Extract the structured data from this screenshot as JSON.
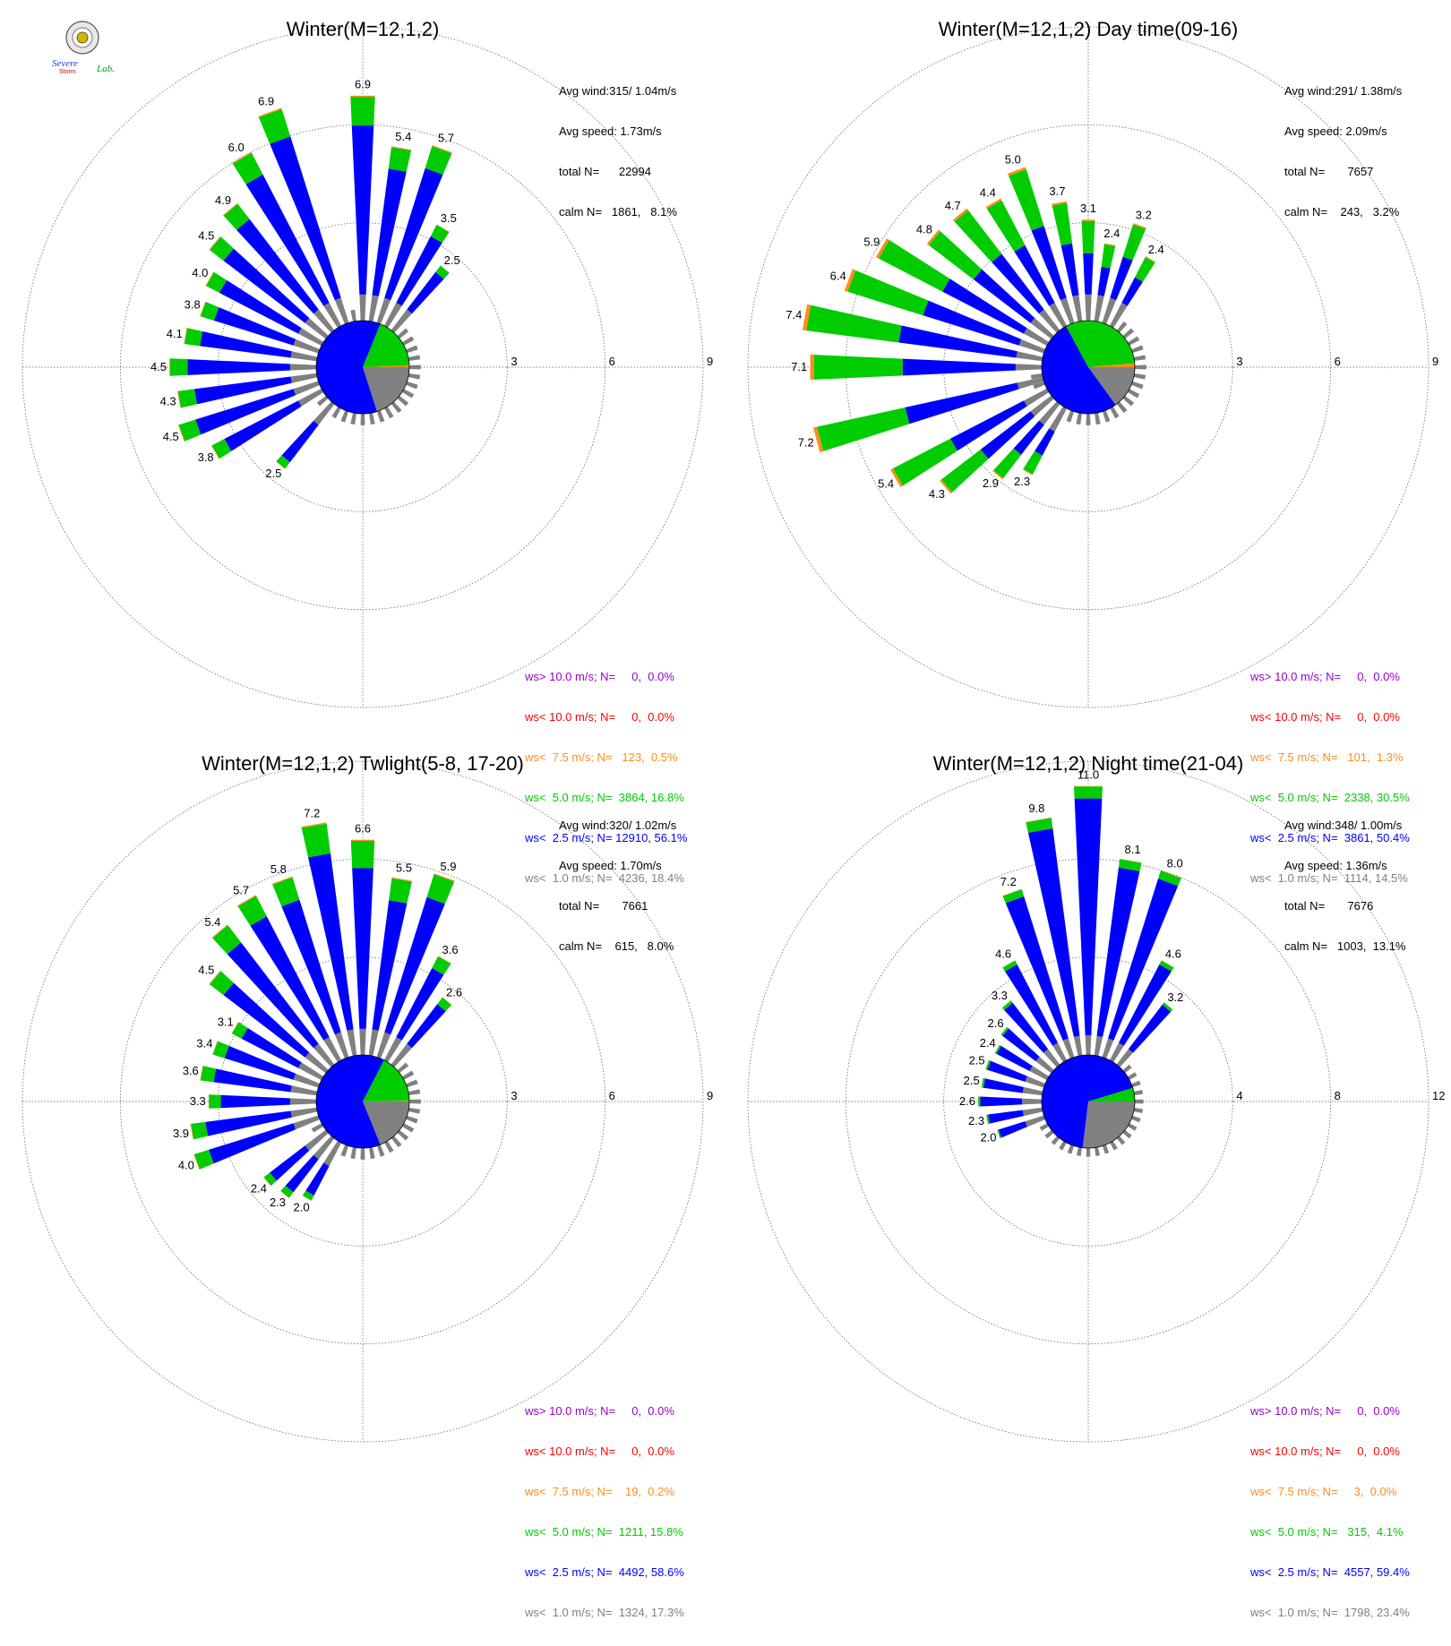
{
  "colors": {
    "gt10": "#9900cc",
    "lt10": "#ff0000",
    "lt7_5": "#ff8c1a",
    "lt5": "#00cc00",
    "lt2_5": "#0000ff",
    "lt1": "#808080"
  },
  "logo": {
    "text_top": "Severe",
    "text_bottom": "Storm",
    "text_lab": "Lab."
  },
  "panels": [
    {
      "title": "Winter(M=12,1,2)",
      "stats": [
        "Avg wind:315/ 1.04m/s",
        "Avg speed: 1.73m/s",
        "total N=      22994",
        "calm N=   1861,   8.1%"
      ],
      "legend": [
        "ws> 10.0 m/s; N=     0,  0.0%",
        "ws< 10.0 m/s; N=     0,  0.0%",
        "ws<  7.5 m/s; N=   123,  0.5%",
        "ws<  5.0 m/s; N=  3864, 16.8%",
        "ws<  2.5 m/s; N= 12910, 56.1%",
        "ws<  1.0 m/s; N=  4236, 18.4%"
      ],
      "rings": [
        "3",
        "6",
        "9"
      ]
    },
    {
      "title": "Winter(M=12,1,2) Day time(09-16)",
      "stats": [
        "Avg wind:291/ 1.38m/s",
        "Avg speed: 2.09m/s",
        "total N=       7657",
        "calm N=    243,   3.2%"
      ],
      "legend": [
        "ws> 10.0 m/s; N=     0,  0.0%",
        "ws< 10.0 m/s; N=     0,  0.0%",
        "ws<  7.5 m/s; N=   101,  1.3%",
        "ws<  5.0 m/s; N=  2338, 30.5%",
        "ws<  2.5 m/s; N=  3861, 50.4%",
        "ws<  1.0 m/s; N=  1114, 14.5%"
      ],
      "rings": [
        "3",
        "6",
        "9"
      ]
    },
    {
      "title": "Winter(M=12,1,2) Twlight(5-8, 17-20)",
      "stats": [
        "Avg wind:320/ 1.02m/s",
        "Avg speed: 1.70m/s",
        "total N=       7661",
        "calm N=    615,   8.0%"
      ],
      "legend": [
        "ws> 10.0 m/s; N=     0,  0.0%",
        "ws< 10.0 m/s; N=     0,  0.0%",
        "ws<  7.5 m/s; N=    19,  0.2%",
        "ws<  5.0 m/s; N=  1211, 15.8%",
        "ws<  2.5 m/s; N=  4492, 58.6%",
        "ws<  1.0 m/s; N=  1324, 17.3%"
      ],
      "rings": [
        "3",
        "6",
        "9"
      ]
    },
    {
      "title": "Winter(M=12,1,2) Night time(21-04)",
      "stats": [
        "Avg wind:348/ 1.00m/s",
        "Avg speed: 1.36m/s",
        "total N=       7676",
        "calm N=   1003,  13.1%"
      ],
      "legend": [
        "ws> 10.0 m/s; N=     0,  0.0%",
        "ws< 10.0 m/s; N=     0,  0.0%",
        "ws<  7.5 m/s; N=     3,  0.0%",
        "ws<  5.0 m/s; N=   315,  4.1%",
        "ws<  2.5 m/s; N=  4557, 59.4%",
        "ws<  1.0 m/s; N=  1798, 23.4%"
      ],
      "rings": [
        "4",
        "8",
        "12"
      ]
    }
  ],
  "chart_data": [
    {
      "type": "polar-bar",
      "title": "Winter(M=12,1,2)",
      "rmax": 9,
      "ring_ticks": [
        3,
        6,
        9
      ],
      "pie_fractions": [
        0.184,
        0.561,
        0.168,
        0.005,
        0.0,
        0.0
      ],
      "directions_deg": [
        0,
        10,
        20,
        30,
        40,
        180,
        190,
        200,
        210,
        220,
        230,
        240,
        250,
        260,
        270,
        280,
        290,
        300,
        310,
        320,
        330,
        340,
        350
      ],
      "bars": [
        {
          "dir": 0,
          "total": 6.9,
          "label": "6.9"
        },
        {
          "dir": 10,
          "total": 5.4,
          "label": "5.4"
        },
        {
          "dir": 20,
          "total": 5.7,
          "label": "5.7"
        },
        {
          "dir": 30,
          "total": 3.5,
          "label": "3.5"
        },
        {
          "dir": 40,
          "total": 2.5,
          "label": "2.5"
        },
        {
          "dir": 220,
          "total": 2.5,
          "label": "2.5"
        },
        {
          "dir": 240,
          "total": 3.8,
          "label": "3.8"
        },
        {
          "dir": 250,
          "total": 4.5,
          "label": "4.5"
        },
        {
          "dir": 260,
          "total": 4.3,
          "label": "4.3"
        },
        {
          "dir": 270,
          "total": 4.5,
          "label": "4.5"
        },
        {
          "dir": 280,
          "total": 4.1,
          "label": "4.1"
        },
        {
          "dir": 290,
          "total": 3.8,
          "label": "3.8"
        },
        {
          "dir": 300,
          "total": 4.0,
          "label": "4.0"
        },
        {
          "dir": 310,
          "total": 4.5,
          "label": "4.5"
        },
        {
          "dir": 320,
          "total": 4.9,
          "label": "4.9"
        },
        {
          "dir": 330,
          "total": 6.0,
          "label": "6.0"
        },
        {
          "dir": 340,
          "total": 6.9,
          "label": "6.9"
        }
      ]
    },
    {
      "type": "polar-bar",
      "title": "Winter(M=12,1,2) Day time(09-16)",
      "rmax": 9,
      "ring_ticks": [
        3,
        6,
        9
      ],
      "pie_fractions": [
        0.145,
        0.504,
        0.305,
        0.013,
        0.0,
        0.0
      ],
      "bars": [
        {
          "dir": 0,
          "total": 3.1,
          "label": "3.1"
        },
        {
          "dir": 10,
          "total": 2.4,
          "label": "2.4"
        },
        {
          "dir": 20,
          "total": 3.2,
          "label": "3.2"
        },
        {
          "dir": 30,
          "total": 2.4,
          "label": "2.4"
        },
        {
          "dir": 210,
          "total": 2.3,
          "label": "2.3"
        },
        {
          "dir": 220,
          "total": 2.9,
          "label": "2.9"
        },
        {
          "dir": 230,
          "total": 4.3,
          "label": "4.3"
        },
        {
          "dir": 240,
          "total": 5.4,
          "label": "5.4"
        },
        {
          "dir": 255,
          "total": 7.2,
          "label": "7.2"
        },
        {
          "dir": 270,
          "total": 7.1,
          "label": "7.1"
        },
        {
          "dir": 280,
          "total": 7.4,
          "label": "7.4"
        },
        {
          "dir": 290,
          "total": 6.4,
          "label": "6.4"
        },
        {
          "dir": 300,
          "total": 5.9,
          "label": "5.9"
        },
        {
          "dir": 310,
          "total": 4.8,
          "label": "4.8"
        },
        {
          "dir": 320,
          "total": 4.7,
          "label": "4.7"
        },
        {
          "dir": 330,
          "total": 4.4,
          "label": "4.4"
        },
        {
          "dir": 340,
          "total": 5.0,
          "label": "5.0"
        },
        {
          "dir": 350,
          "total": 3.7,
          "label": "3.7"
        }
      ]
    },
    {
      "type": "polar-bar",
      "title": "Winter(M=12,1,2) Twlight(5-8, 17-20)",
      "rmax": 9,
      "ring_ticks": [
        3,
        6,
        9
      ],
      "pie_fractions": [
        0.173,
        0.586,
        0.158,
        0.002,
        0.0,
        0.0
      ],
      "bars": [
        {
          "dir": 0,
          "total": 6.6,
          "label": "6.6"
        },
        {
          "dir": 10,
          "total": 5.5,
          "label": "5.5"
        },
        {
          "dir": 20,
          "total": 5.9,
          "label": "5.9"
        },
        {
          "dir": 30,
          "total": 3.6,
          "label": "3.6"
        },
        {
          "dir": 40,
          "total": 2.6,
          "label": "2.6"
        },
        {
          "dir": 210,
          "total": 2.0,
          "label": "2.0"
        },
        {
          "dir": 220,
          "total": 2.3,
          "label": "2.3"
        },
        {
          "dir": 230,
          "total": 2.4,
          "label": "2.4"
        },
        {
          "dir": 250,
          "total": 4.0,
          "label": "4.0"
        },
        {
          "dir": 260,
          "total": 3.9,
          "label": "3.9"
        },
        {
          "dir": 270,
          "total": 3.3,
          "label": "3.3"
        },
        {
          "dir": 280,
          "total": 3.6,
          "label": "3.6"
        },
        {
          "dir": 290,
          "total": 3.4,
          "label": "3.4"
        },
        {
          "dir": 300,
          "total": 3.1,
          "label": "3.1"
        },
        {
          "dir": 310,
          "total": 4.5,
          "label": "4.5"
        },
        {
          "dir": 320,
          "total": 5.4,
          "label": "5.4"
        },
        {
          "dir": 330,
          "total": 5.7,
          "label": "5.7"
        },
        {
          "dir": 340,
          "total": 5.8,
          "label": "5.8"
        },
        {
          "dir": 350,
          "total": 7.2,
          "label": "7.2"
        }
      ]
    },
    {
      "type": "polar-bar",
      "title": "Winter(M=12,1,2) Night time(21-04)",
      "rmax": 12,
      "ring_ticks": [
        4,
        8,
        12
      ],
      "pie_fractions": [
        0.234,
        0.594,
        0.041,
        0.0,
        0.0,
        0.0
      ],
      "bars": [
        {
          "dir": 0,
          "total": 11.0,
          "label": "11.0"
        },
        {
          "dir": 10,
          "total": 8.1,
          "label": "8.1"
        },
        {
          "dir": 20,
          "total": 8.0,
          "label": "8.0"
        },
        {
          "dir": 30,
          "total": 4.6,
          "label": "4.6"
        },
        {
          "dir": 40,
          "total": 3.2,
          "label": "3.2"
        },
        {
          "dir": 250,
          "total": 2.0,
          "label": "2.0"
        },
        {
          "dir": 260,
          "total": 2.3,
          "label": "2.3"
        },
        {
          "dir": 270,
          "total": 2.6,
          "label": "2.6"
        },
        {
          "dir": 280,
          "total": 2.5,
          "label": "2.5"
        },
        {
          "dir": 290,
          "total": 2.5,
          "label": "2.5"
        },
        {
          "dir": 300,
          "total": 2.4,
          "label": "2.4"
        },
        {
          "dir": 310,
          "total": 2.6,
          "label": "2.6"
        },
        {
          "dir": 320,
          "total": 3.3,
          "label": "3.3"
        },
        {
          "dir": 330,
          "total": 4.6,
          "label": "4.6"
        },
        {
          "dir": 340,
          "total": 7.2,
          "label": "7.2"
        },
        {
          "dir": 350,
          "total": 9.8,
          "label": "9.8"
        }
      ]
    }
  ]
}
